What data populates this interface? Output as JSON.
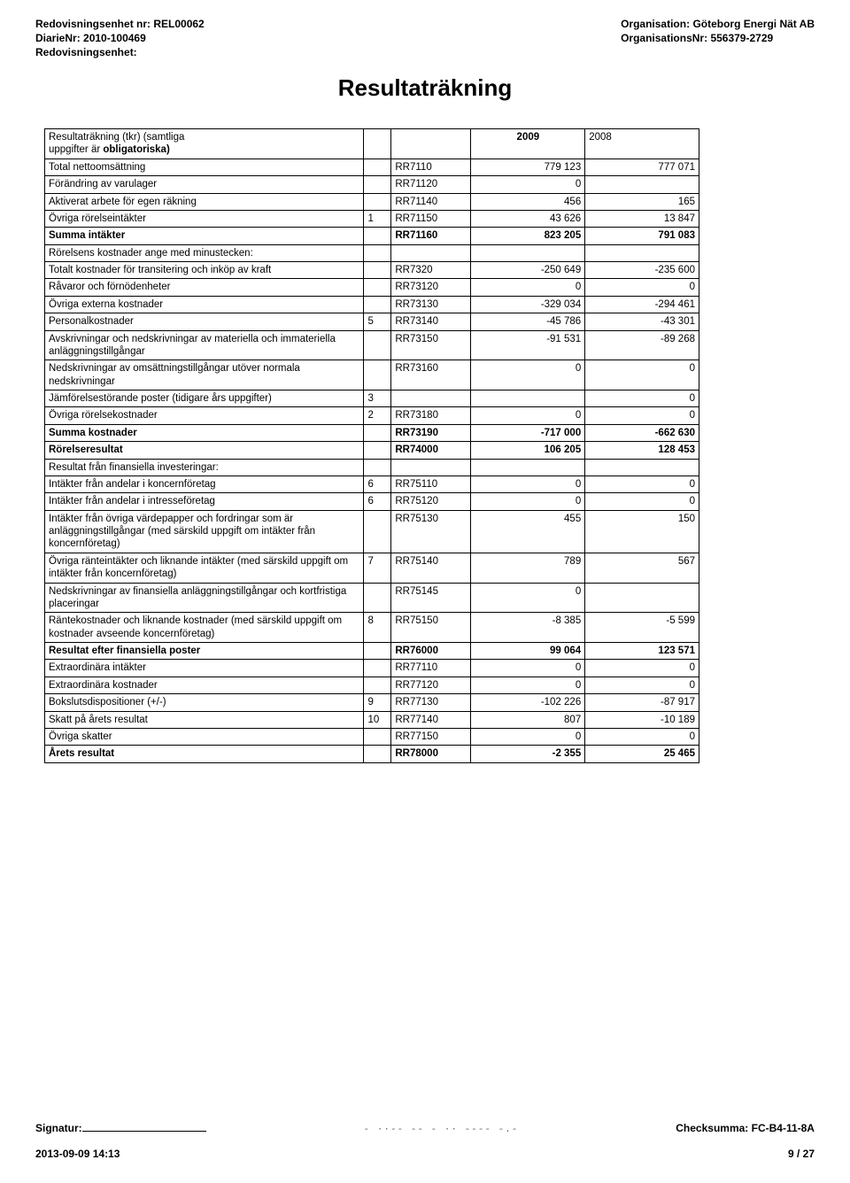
{
  "header": {
    "left": {
      "l1_label": "Redovisningsenhet nr:",
      "l1_value": "REL00062",
      "l2_label": "DiarieNr:",
      "l2_value": "2010-100469",
      "l3_label": "Redovisningsenhet:",
      "l3_value": ""
    },
    "right": {
      "r1_label": "Organisation:",
      "r1_value": "Göteborg Energi Nät AB",
      "r2_label": "OrganisationsNr:",
      "r2_value": "556379-2729"
    }
  },
  "page_title": "Resultaträkning",
  "table": {
    "header_row": {
      "c1": "Resultaträkning (tkr) (samtliga uppgifter är obligatoriska)",
      "c2": "",
      "c3": "",
      "c4": "2009",
      "c5": "2008"
    },
    "rows": [
      {
        "label": "Total nettoomsättning",
        "note": "",
        "code": "RR7110",
        "v2009": "779 123",
        "v2008": "777 071"
      },
      {
        "label": "Förändring av varulager",
        "note": "",
        "code": "RR71120",
        "v2009": "0",
        "v2008": ""
      },
      {
        "label": "Aktiverat arbete för egen räkning",
        "note": "",
        "code": "RR71140",
        "v2009": "456",
        "v2008": "165"
      },
      {
        "label": "Övriga rörelseintäkter",
        "note": "1",
        "code": "RR71150",
        "v2009": "43 626",
        "v2008": "13 847"
      },
      {
        "label": "Summa intäkter",
        "note": "",
        "code": "RR71160",
        "v2009": "823 205",
        "v2008": "791 083",
        "bold": true
      },
      {
        "label": "Rörelsens kostnader ange med minustecken:",
        "note": "",
        "code": "",
        "v2009": "",
        "v2008": ""
      },
      {
        "label": "Totalt kostnader för transitering och inköp av kraft",
        "note": "",
        "code": "RR7320",
        "v2009": "-250 649",
        "v2008": "-235 600"
      },
      {
        "label": "Råvaror och förnödenheter",
        "note": "",
        "code": "RR73120",
        "v2009": "0",
        "v2008": "0"
      },
      {
        "label": "Övriga externa kostnader",
        "note": "",
        "code": "RR73130",
        "v2009": "-329 034",
        "v2008": "-294 461"
      },
      {
        "label": "Personalkostnader",
        "note": "5",
        "code": "RR73140",
        "v2009": "-45 786",
        "v2008": "-43 301"
      },
      {
        "label": "Avskrivningar och nedskrivningar av materiella och immateriella anläggningstillgångar",
        "note": "",
        "code": "RR73150",
        "v2009": "-91 531",
        "v2008": "-89 268"
      },
      {
        "label": "Nedskrivningar av omsättningstillgångar utöver normala nedskrivningar",
        "note": "",
        "code": "RR73160",
        "v2009": "0",
        "v2008": "0"
      },
      {
        "label": "Jämförelsestörande poster (tidigare års uppgifter)",
        "note": "3",
        "code": "",
        "v2009": "",
        "v2008": "0"
      },
      {
        "label": "Övriga rörelsekostnader",
        "note": "2",
        "code": "RR73180",
        "v2009": "0",
        "v2008": "0"
      },
      {
        "label": "Summa kostnader",
        "note": "",
        "code": "RR73190",
        "v2009": "-717 000",
        "v2008": "-662 630",
        "bold": true
      },
      {
        "label": "Rörelseresultat",
        "note": "",
        "code": "RR74000",
        "v2009": "106 205",
        "v2008": "128 453",
        "bold": true
      },
      {
        "label": "Resultat från finansiella investeringar:",
        "note": "",
        "code": "",
        "v2009": "",
        "v2008": ""
      },
      {
        "label": "Intäkter från andelar i koncernföretag",
        "note": "6",
        "code": "RR75110",
        "v2009": "0",
        "v2008": "0"
      },
      {
        "label": "Intäkter från andelar i intresseföretag",
        "note": "6",
        "code": "RR75120",
        "v2009": "0",
        "v2008": "0"
      },
      {
        "label": "Intäkter från övriga värdepapper och fordringar som är anläggningstillgångar (med särskild uppgift om intäkter från koncernföretag)",
        "note": "",
        "code": "RR75130",
        "v2009": "455",
        "v2008": "150"
      },
      {
        "label": "Övriga ränteintäkter och liknande intäkter (med särskild uppgift om intäkter från koncernföretag)",
        "note": "7",
        "code": "RR75140",
        "v2009": "789",
        "v2008": "567"
      },
      {
        "label": "Nedskrivningar av finansiella anläggningstillgångar och kortfristiga placeringar",
        "note": "",
        "code": "RR75145",
        "v2009": "0",
        "v2008": ""
      },
      {
        "label": "Räntekostnader och liknande kostnader (med särskild uppgift om kostnader avseende koncernföretag)",
        "note": "8",
        "code": "RR75150",
        "v2009": "-8 385",
        "v2008": "-5 599"
      },
      {
        "label": "Resultat efter finansiella poster",
        "note": "",
        "code": "RR76000",
        "v2009": "99 064",
        "v2008": "123 571",
        "bold": true
      },
      {
        "label": "Extraordinära intäkter",
        "note": "",
        "code": "RR77110",
        "v2009": "0",
        "v2008": "0"
      },
      {
        "label": "Extraordinära kostnader",
        "note": "",
        "code": "RR77120",
        "v2009": "0",
        "v2008": "0"
      },
      {
        "label": "Bokslutsdispositioner (+/-)",
        "note": "9",
        "code": "RR77130",
        "v2009": "-102 226",
        "v2008": "-87 917"
      },
      {
        "label": "Skatt på årets resultat",
        "note": "10",
        "code": "RR77140",
        "v2009": "807",
        "v2008": "-10 189"
      },
      {
        "label": "Övriga skatter",
        "note": "",
        "code": "RR77150",
        "v2009": "0",
        "v2008": "0"
      },
      {
        "label": "Årets resultat",
        "note": "",
        "code": "RR78000",
        "v2009": "-2 355",
        "v2008": "25 465",
        "bold": true
      }
    ]
  },
  "footer": {
    "signatur_label": "Signatur:",
    "scribble": "- ··-- -- - ·· ---- -.-",
    "checksum_label": "Checksumma:",
    "checksum_value": "FC-B4-11-8A",
    "date": "2013-09-09 14:13",
    "page": "9 / 27"
  }
}
